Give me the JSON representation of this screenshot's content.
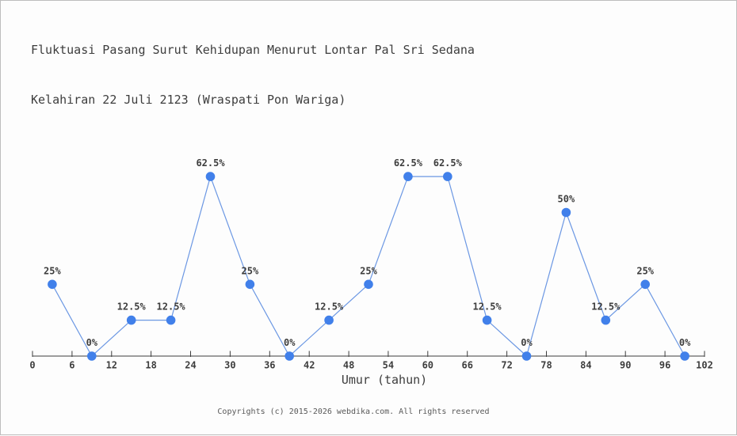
{
  "title": {
    "line1": "Fluktuasi Pasang Surut Kehidupan Menurut Lontar Pal Sri Sedana",
    "line2": "Kelahiran 22 Juli 2123 (Wraspati Pon Wariga)"
  },
  "footer": "Copyrights (c) 2015-2026 webdika.com. All rights reserved",
  "colors": {
    "marker": "#4180ea",
    "line": "#6b97e3",
    "axis": "#3d3d3d",
    "text": "#3d3d3d",
    "footer-text": "#595959",
    "background": "#fdfdfd",
    "border": "#bdbdbd"
  },
  "chart_data": {
    "type": "line",
    "title": "Fluktuasi Pasang Surut Kehidupan Menurut Lontar Pal Sri Sedana Kelahiran 22 Juli 2123 (Wraspati Pon Wariga)",
    "x": [
      3,
      9,
      15,
      21,
      27,
      33,
      39,
      45,
      51,
      57,
      63,
      69,
      75,
      81,
      87,
      93,
      99
    ],
    "values": [
      25,
      0,
      12.5,
      12.5,
      62.5,
      25,
      0,
      12.5,
      25,
      62.5,
      62.5,
      12.5,
      0,
      50,
      12.5,
      25,
      0
    ],
    "point_labels": [
      "25%",
      "0%",
      "12.5%",
      "12.5%",
      "62.5%",
      "25%",
      "0%",
      "12.5%",
      "25%",
      "62.5%",
      "62.5%",
      "12.5%",
      "0%",
      "50%",
      "12.5%",
      "25%",
      "0%"
    ],
    "xlabel": "Umur (tahun)",
    "ylabel": "",
    "x_ticks": [
      0,
      6,
      12,
      18,
      24,
      30,
      36,
      42,
      48,
      54,
      60,
      66,
      72,
      78,
      84,
      90,
      96,
      102
    ],
    "xlim": [
      0,
      102
    ],
    "ylim": [
      0,
      100
    ],
    "grid": false,
    "legend": false,
    "y_axis_visible": false
  }
}
